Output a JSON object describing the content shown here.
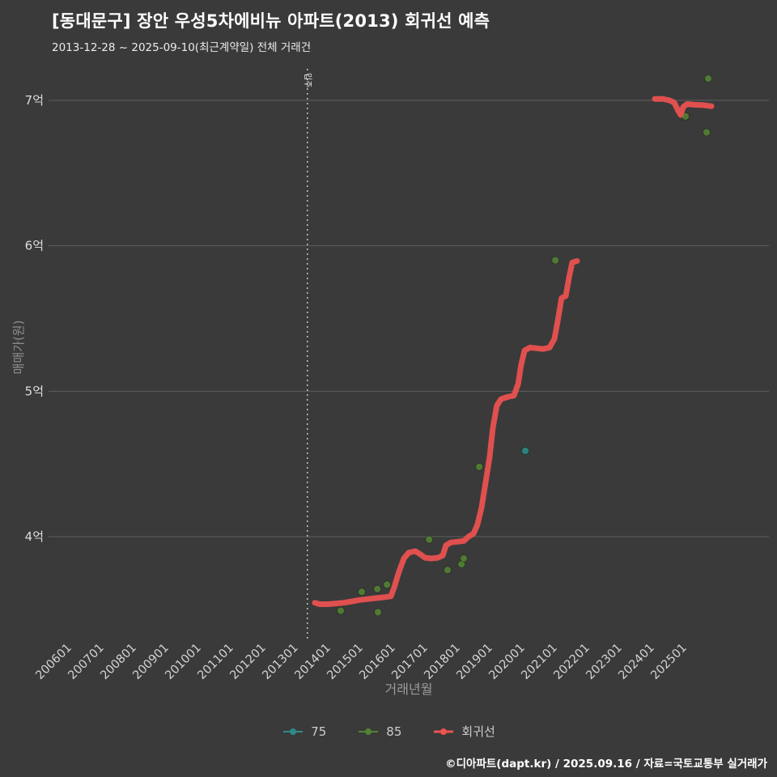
{
  "header": {
    "title": "[동대문구] 장안 우성5차에비뉴 아파트(2013) 회귀선 예측",
    "subtitle": "2013-12-28 ~ 2025-09-10(최근계약일) 전체 거래건"
  },
  "chart_data": {
    "type": "scatter",
    "title": "[동대문구] 장안 우성5차에비뉴 아파트(2013) 회귀선 예측",
    "xlabel": "거래년월",
    "ylabel": "매매가(원)",
    "y_unit": "억원",
    "x_ticks": [
      "200601",
      "200701",
      "200801",
      "200901",
      "201001",
      "201101",
      "201201",
      "201301",
      "201401",
      "201501",
      "201601",
      "201701",
      "201801",
      "201901",
      "202001",
      "202101",
      "202201",
      "202301",
      "202401",
      "202501"
    ],
    "x_tick_values": [
      2006,
      2007,
      2008,
      2009,
      2010,
      2011,
      2012,
      2013,
      2014,
      2015,
      2016,
      2017,
      2018,
      2019,
      2020,
      2021,
      2022,
      2023,
      2024,
      2025
    ],
    "y_ticks": [
      "4억",
      "5억",
      "6억",
      "7억"
    ],
    "y_tick_values": [
      4,
      5,
      6,
      7
    ],
    "xlim": [
      2005.4,
      2026.3
    ],
    "ylim": [
      3.28,
      7.22
    ],
    "grid": "horizontal",
    "legend_position": "bottom",
    "annotation": {
      "label": "입주",
      "x": 2013.37
    },
    "series": [
      {
        "name": "75",
        "type": "scatter",
        "color": "#2e8b84",
        "points": [
          [
            2020.1,
            4.59
          ]
        ]
      },
      {
        "name": "85",
        "type": "scatter",
        "color": "#548234",
        "points": [
          [
            2014.4,
            3.49
          ],
          [
            2015.05,
            3.62
          ],
          [
            2015.53,
            3.64
          ],
          [
            2015.55,
            3.48
          ],
          [
            2015.83,
            3.67
          ],
          [
            2017.13,
            3.98
          ],
          [
            2017.7,
            3.77
          ],
          [
            2018.13,
            3.81
          ],
          [
            2018.2,
            3.85
          ],
          [
            2018.68,
            4.48
          ],
          [
            2021.03,
            5.9
          ],
          [
            2025.05,
            6.89
          ],
          [
            2025.7,
            6.78
          ],
          [
            2025.75,
            7.15
          ]
        ]
      },
      {
        "name": "회귀선",
        "type": "line",
        "color": "#ee5350",
        "segments": [
          [
            [
              2013.6,
              3.545
            ],
            [
              2013.75,
              3.535
            ],
            [
              2014.0,
              3.535
            ],
            [
              2014.25,
              3.54
            ],
            [
              2014.5,
              3.545
            ],
            [
              2014.75,
              3.555
            ],
            [
              2015.0,
              3.565
            ],
            [
              2015.2,
              3.57
            ],
            [
              2015.4,
              3.575
            ],
            [
              2015.6,
              3.58
            ],
            [
              2015.8,
              3.585
            ],
            [
              2015.95,
              3.59
            ],
            [
              2016.05,
              3.65
            ],
            [
              2016.2,
              3.76
            ],
            [
              2016.35,
              3.85
            ],
            [
              2016.5,
              3.89
            ],
            [
              2016.7,
              3.9
            ],
            [
              2016.85,
              3.88
            ],
            [
              2017.0,
              3.855
            ],
            [
              2017.2,
              3.85
            ],
            [
              2017.4,
              3.855
            ],
            [
              2017.55,
              3.87
            ],
            [
              2017.65,
              3.94
            ],
            [
              2017.8,
              3.96
            ],
            [
              2018.0,
              3.965
            ],
            [
              2018.2,
              3.97
            ],
            [
              2018.35,
              4.0
            ],
            [
              2018.5,
              4.02
            ],
            [
              2018.62,
              4.08
            ],
            [
              2018.75,
              4.2
            ],
            [
              2018.88,
              4.38
            ],
            [
              2019.0,
              4.55
            ],
            [
              2019.1,
              4.75
            ],
            [
              2019.22,
              4.9
            ],
            [
              2019.35,
              4.945
            ],
            [
              2019.55,
              4.96
            ],
            [
              2019.75,
              4.97
            ],
            [
              2019.88,
              5.05
            ],
            [
              2019.97,
              5.18
            ],
            [
              2020.08,
              5.28
            ],
            [
              2020.25,
              5.3
            ],
            [
              2020.45,
              5.295
            ],
            [
              2020.65,
              5.29
            ],
            [
              2020.85,
              5.3
            ],
            [
              2021.0,
              5.36
            ],
            [
              2021.1,
              5.48
            ],
            [
              2021.22,
              5.64
            ],
            [
              2021.35,
              5.655
            ],
            [
              2021.45,
              5.78
            ],
            [
              2021.55,
              5.885
            ],
            [
              2021.7,
              5.895
            ]
          ],
          [
            [
              2024.1,
              7.01
            ],
            [
              2024.35,
              7.01
            ],
            [
              2024.55,
              7.0
            ],
            [
              2024.7,
              6.985
            ],
            [
              2024.82,
              6.93
            ],
            [
              2024.9,
              6.9
            ],
            [
              2024.98,
              6.955
            ],
            [
              2025.1,
              6.975
            ],
            [
              2025.3,
              6.97
            ],
            [
              2025.55,
              6.968
            ],
            [
              2025.85,
              6.96
            ]
          ]
        ]
      }
    ]
  },
  "footer": {
    "credit": "©디아파트(dapt.kr) / 2025.09.16 / 자료=국토교통부 실거래가"
  }
}
